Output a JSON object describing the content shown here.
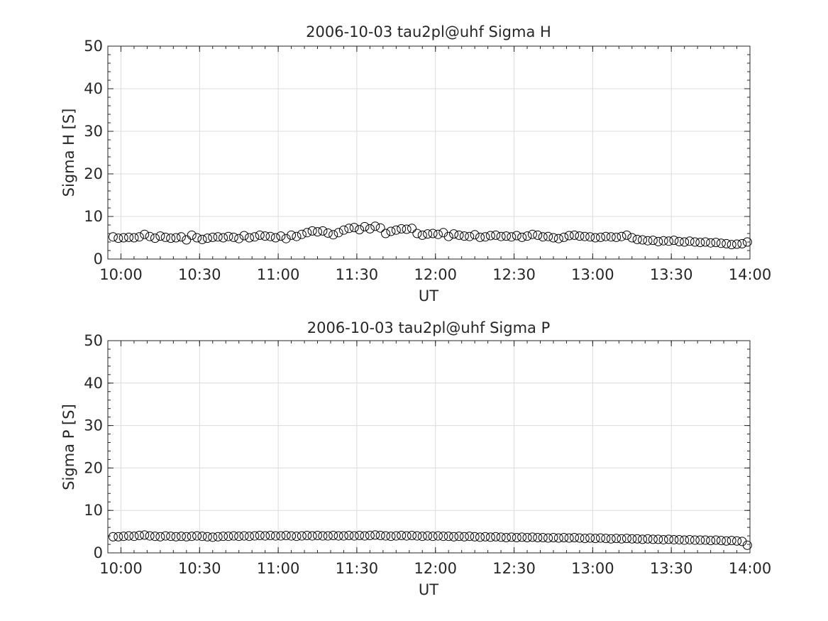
{
  "chart_data": [
    {
      "type": "scatter",
      "title": "2006-10-03  tau2pl@uhf Sigma H",
      "xlabel": "UT",
      "ylabel": "Sigma H [S]",
      "ylim": [
        0,
        50
      ],
      "xlim": [
        "09:55",
        "14:00"
      ],
      "grid": true,
      "x_ticks": [
        "10:00",
        "10:30",
        "11:00",
        "11:30",
        "12:00",
        "12:30",
        "13:00",
        "13:30",
        "14:00"
      ],
      "y_ticks": [
        "0",
        "10",
        "20",
        "30",
        "40",
        "50"
      ],
      "series": [
        {
          "marker": "open-circle",
          "x": [
            "09:57",
            "09:59",
            "10:01",
            "10:03",
            "10:05",
            "10:07",
            "10:09",
            "10:11",
            "10:13",
            "10:15",
            "10:17",
            "10:19",
            "10:21",
            "10:23",
            "10:25",
            "10:27",
            "10:29",
            "10:31",
            "10:33",
            "10:35",
            "10:37",
            "10:39",
            "10:41",
            "10:43",
            "10:45",
            "10:47",
            "10:49",
            "10:51",
            "10:53",
            "10:55",
            "10:57",
            "10:59",
            "11:01",
            "11:03",
            "11:05",
            "11:07",
            "11:09",
            "11:11",
            "11:13",
            "11:15",
            "11:17",
            "11:19",
            "11:21",
            "11:23",
            "11:25",
            "11:27",
            "11:29",
            "11:31",
            "11:33",
            "11:35",
            "11:37",
            "11:39",
            "11:41",
            "11:43",
            "11:45",
            "11:47",
            "11:49",
            "11:51",
            "11:53",
            "11:55",
            "11:57",
            "11:59",
            "12:01",
            "12:03",
            "12:05",
            "12:07",
            "12:09",
            "12:11",
            "12:13",
            "12:15",
            "12:17",
            "12:19",
            "12:21",
            "12:23",
            "12:25",
            "12:27",
            "12:29",
            "12:31",
            "12:33",
            "12:35",
            "12:37",
            "12:39",
            "12:41",
            "12:43",
            "12:45",
            "12:47",
            "12:49",
            "12:51",
            "12:53",
            "12:55",
            "12:57",
            "12:59",
            "13:01",
            "13:03",
            "13:05",
            "13:07",
            "13:09",
            "13:11",
            "13:13",
            "13:15",
            "13:17",
            "13:19",
            "13:21",
            "13:23",
            "13:25",
            "13:27",
            "13:29",
            "13:31",
            "13:33",
            "13:35",
            "13:37",
            "13:39",
            "13:41",
            "13:43",
            "13:45",
            "13:47",
            "13:49",
            "13:51",
            "13:53",
            "13:55",
            "13:57",
            "13:59"
          ],
          "values": [
            5.2,
            4.9,
            5.0,
            5.1,
            5.0,
            5.2,
            5.8,
            5.3,
            4.9,
            5.4,
            5.1,
            4.9,
            5.0,
            5.2,
            4.5,
            5.6,
            5.0,
            4.6,
            4.9,
            5.1,
            5.2,
            5.0,
            5.3,
            5.1,
            4.8,
            5.5,
            5.0,
            5.2,
            5.6,
            5.4,
            5.3,
            5.0,
            5.4,
            4.8,
            5.6,
            5.3,
            5.8,
            6.2,
            6.6,
            6.4,
            6.6,
            6.1,
            5.7,
            6.2,
            6.8,
            7.2,
            7.4,
            6.9,
            7.6,
            7.1,
            7.7,
            7.3,
            6.0,
            6.5,
            6.8,
            7.1,
            7.0,
            7.2,
            6.0,
            5.6,
            5.9,
            6.0,
            5.8,
            6.2,
            5.3,
            5.9,
            5.6,
            5.4,
            5.3,
            5.7,
            5.1,
            5.2,
            5.5,
            5.6,
            5.3,
            5.4,
            5.2,
            5.5,
            5.1,
            5.4,
            5.8,
            5.6,
            5.2,
            5.3,
            5.0,
            4.8,
            5.1,
            5.5,
            5.6,
            5.4,
            5.3,
            5.2,
            5.0,
            5.1,
            5.3,
            5.2,
            5.1,
            5.3,
            5.6,
            5.0,
            4.6,
            4.5,
            4.3,
            4.4,
            4.1,
            4.3,
            4.2,
            4.4,
            4.1,
            4.0,
            4.2,
            4.0,
            3.9,
            4.0,
            3.8,
            3.9,
            3.7,
            3.6,
            3.4,
            3.5,
            3.6,
            4.0
          ]
        }
      ]
    },
    {
      "type": "scatter",
      "title": "2006-10-03  tau2pl@uhf Sigma P",
      "xlabel": "UT",
      "ylabel": "Sigma P [S]",
      "ylim": [
        0,
        50
      ],
      "xlim": [
        "09:55",
        "14:00"
      ],
      "grid": true,
      "x_ticks": [
        "10:00",
        "10:30",
        "11:00",
        "11:30",
        "12:00",
        "12:30",
        "13:00",
        "13:30",
        "14:00"
      ],
      "y_ticks": [
        "0",
        "10",
        "20",
        "30",
        "40",
        "50"
      ],
      "series": [
        {
          "marker": "open-circle",
          "x": [
            "09:57",
            "09:59",
            "10:01",
            "10:03",
            "10:05",
            "10:07",
            "10:09",
            "10:11",
            "10:13",
            "10:15",
            "10:17",
            "10:19",
            "10:21",
            "10:23",
            "10:25",
            "10:27",
            "10:29",
            "10:31",
            "10:33",
            "10:35",
            "10:37",
            "10:39",
            "10:41",
            "10:43",
            "10:45",
            "10:47",
            "10:49",
            "10:51",
            "10:53",
            "10:55",
            "10:57",
            "10:59",
            "11:01",
            "11:03",
            "11:05",
            "11:07",
            "11:09",
            "11:11",
            "11:13",
            "11:15",
            "11:17",
            "11:19",
            "11:21",
            "11:23",
            "11:25",
            "11:27",
            "11:29",
            "11:31",
            "11:33",
            "11:35",
            "11:37",
            "11:39",
            "11:41",
            "11:43",
            "11:45",
            "11:47",
            "11:49",
            "11:51",
            "11:53",
            "11:55",
            "11:57",
            "11:59",
            "12:01",
            "12:03",
            "12:05",
            "12:07",
            "12:09",
            "12:11",
            "12:13",
            "12:15",
            "12:17",
            "12:19",
            "12:21",
            "12:23",
            "12:25",
            "12:27",
            "12:29",
            "12:31",
            "12:33",
            "12:35",
            "12:37",
            "12:39",
            "12:41",
            "12:43",
            "12:45",
            "12:47",
            "12:49",
            "12:51",
            "12:53",
            "12:55",
            "12:57",
            "12:59",
            "13:01",
            "13:03",
            "13:05",
            "13:07",
            "13:09",
            "13:11",
            "13:13",
            "13:15",
            "13:17",
            "13:19",
            "13:21",
            "13:23",
            "13:25",
            "13:27",
            "13:29",
            "13:31",
            "13:33",
            "13:35",
            "13:37",
            "13:39",
            "13:41",
            "13:43",
            "13:45",
            "13:47",
            "13:49",
            "13:51",
            "13:53",
            "13:55",
            "13:57",
            "13:59"
          ],
          "values": [
            3.8,
            3.8,
            3.9,
            4.0,
            3.9,
            4.1,
            4.2,
            4.0,
            3.9,
            3.8,
            4.0,
            3.9,
            3.8,
            3.9,
            3.8,
            3.9,
            4.0,
            3.9,
            3.8,
            3.7,
            3.8,
            3.9,
            3.9,
            4.0,
            3.9,
            4.0,
            3.9,
            4.0,
            4.1,
            4.0,
            4.1,
            4.0,
            4.0,
            4.1,
            4.0,
            3.9,
            4.0,
            4.1,
            4.0,
            4.1,
            4.0,
            4.0,
            4.1,
            4.0,
            4.0,
            4.1,
            4.0,
            4.1,
            4.0,
            4.1,
            4.2,
            4.1,
            4.0,
            3.9,
            4.0,
            4.1,
            4.0,
            4.1,
            4.0,
            3.9,
            4.0,
            3.9,
            4.0,
            3.9,
            3.9,
            3.8,
            3.9,
            3.8,
            3.9,
            3.8,
            3.7,
            3.8,
            3.7,
            3.8,
            3.7,
            3.6,
            3.7,
            3.6,
            3.7,
            3.6,
            3.7,
            3.6,
            3.6,
            3.5,
            3.6,
            3.5,
            3.6,
            3.5,
            3.6,
            3.5,
            3.4,
            3.5,
            3.4,
            3.5,
            3.4,
            3.3,
            3.4,
            3.3,
            3.4,
            3.3,
            3.3,
            3.2,
            3.3,
            3.2,
            3.2,
            3.1,
            3.2,
            3.1,
            3.1,
            3.0,
            3.1,
            3.0,
            3.0,
            3.0,
            2.9,
            3.0,
            2.9,
            2.8,
            2.9,
            2.8,
            2.7,
            1.8
          ]
        }
      ]
    }
  ]
}
